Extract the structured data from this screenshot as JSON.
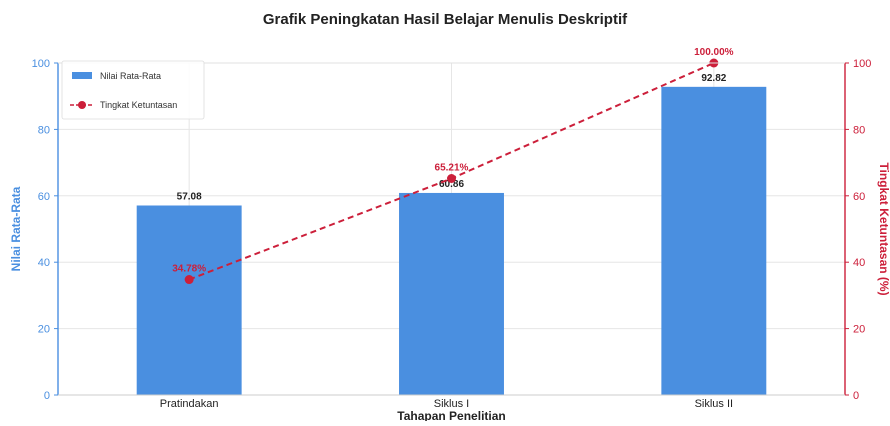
{
  "chart_data": {
    "type": "bar",
    "title": "Grafik Peningkatan Hasil Belajar Menulis Deskriptif",
    "xlabel": "Tahapan Penelitian",
    "ylabel": "Nilai Rata-Rata",
    "y2label": "Tingkat Ketuntasan (%)",
    "categories": [
      "Pratindakan",
      "Siklus I",
      "Siklus II"
    ],
    "ylim": [
      0,
      100
    ],
    "y2lim": [
      0,
      100
    ],
    "yticks": [
      "0",
      "20",
      "40",
      "60",
      "80",
      "100"
    ],
    "y2ticks": [
      "0",
      "20",
      "40",
      "60",
      "80",
      "100"
    ],
    "grid": true,
    "legend_position": "top-left",
    "series": [
      {
        "name": "Nilai Rata-Rata",
        "type": "bar",
        "axis": "left",
        "values": [
          57.08,
          60.86,
          92.82
        ],
        "labels": [
          "57.08",
          "60.86",
          "92.82"
        ],
        "color": "#4a8fe0"
      },
      {
        "name": "Tingkat Ketuntasan",
        "type": "line",
        "axis": "right",
        "style": "dashed",
        "marker": "circle",
        "values": [
          34.78,
          65.21,
          100.0
        ],
        "labels": [
          "34.78%",
          "65.21%",
          "100.00%"
        ],
        "color": "#cc1f3a"
      }
    ],
    "colors": {
      "left_axis": "#4a8fe0",
      "right_axis": "#cc1f3a",
      "grid": "#e6e6e6"
    }
  }
}
